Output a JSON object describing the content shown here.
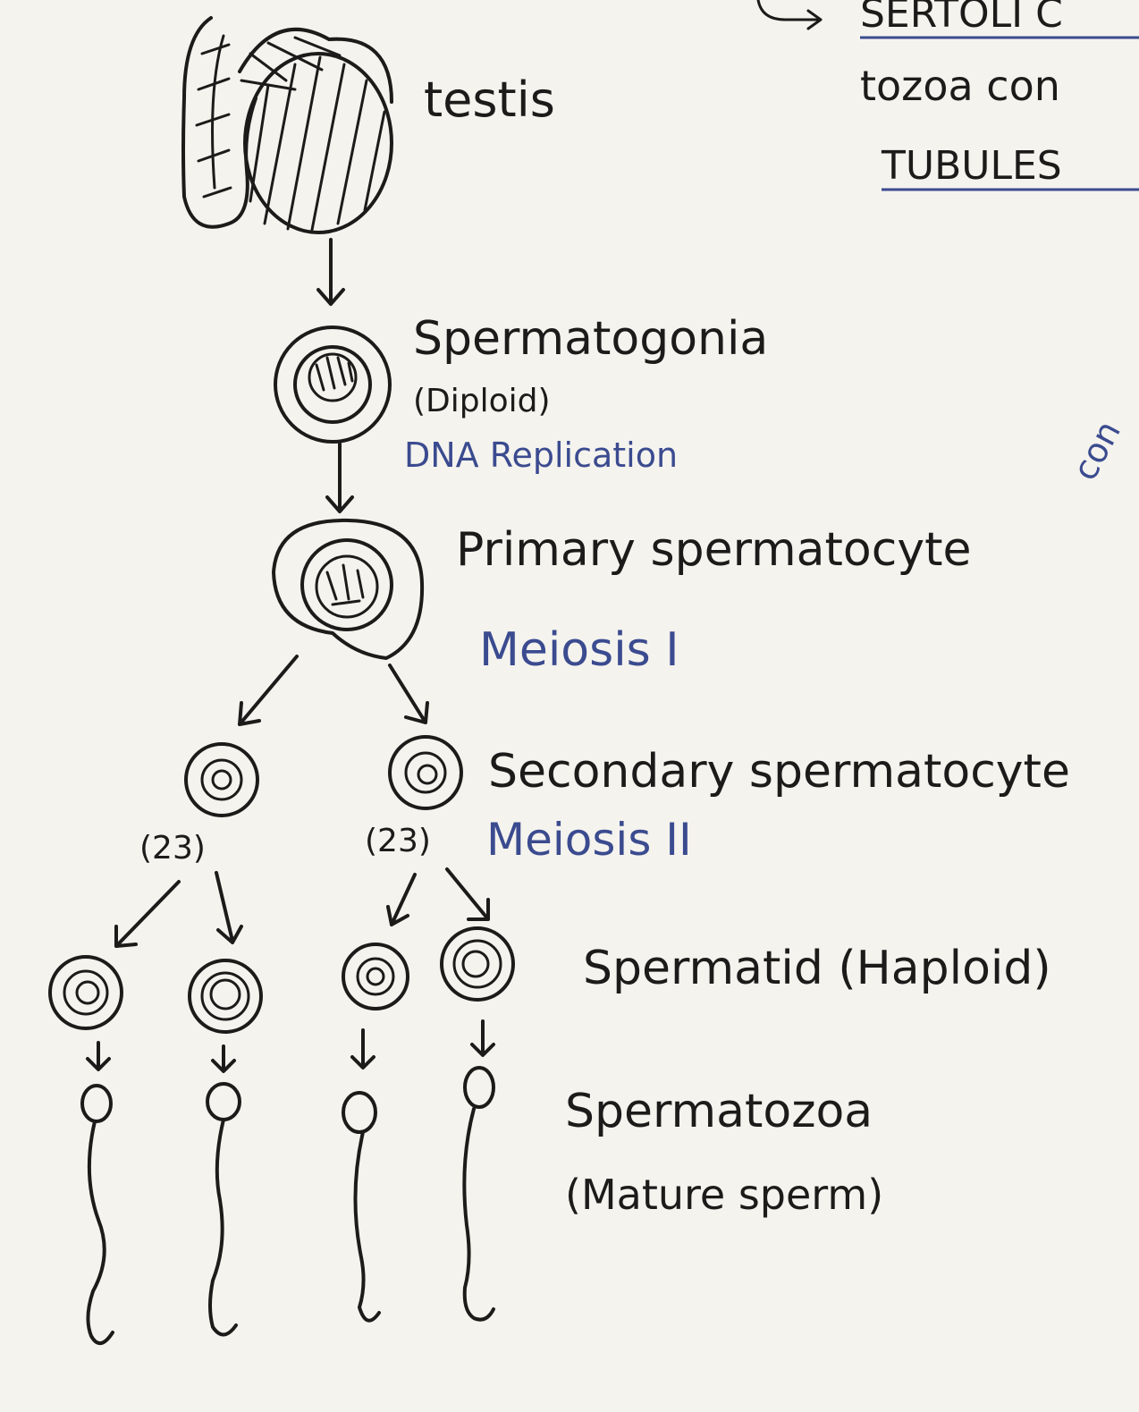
{
  "colors": {
    "ink": "#1d1b1a",
    "blue_ink": "#3b4b8f",
    "paper": "#f4f3ee"
  },
  "labels": {
    "testis": "testis",
    "spermatogonia": "Spermatogonia",
    "diploid": "(Diploid)",
    "dna_replication": "DNA Replication",
    "primary": "Primary spermatocyte",
    "meiosis1": "Meiosis I",
    "secondary": "Secondary spermatocyte",
    "count_left": "(23)",
    "count_right": "(23)",
    "meiosis2": "Meiosis II",
    "spermatid": "Spermatid (Haploid)",
    "spermatozoa": "Spermatozoa",
    "mature": "(Mature sperm)"
  },
  "edge_text": {
    "line1": "SERTOLI C",
    "line2": "tozoa con",
    "line3": "TUBULES",
    "side": "con"
  }
}
